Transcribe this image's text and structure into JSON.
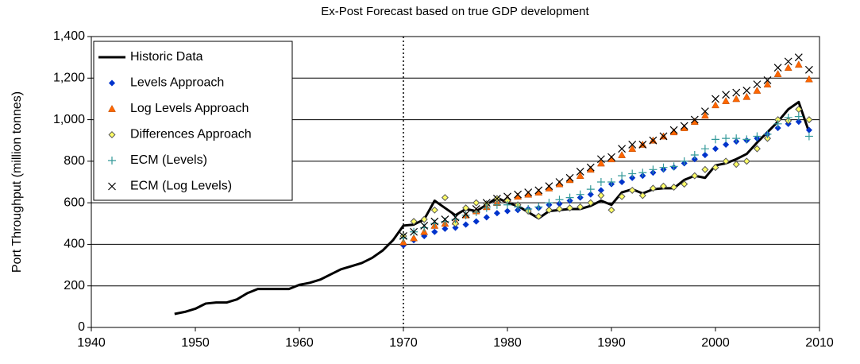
{
  "chart_data": {
    "type": "line",
    "title": "Ex-Post Forecast based on true GDP development",
    "y_label": "Port Throughput (million tonnes)",
    "xlim": [
      1940,
      2010
    ],
    "xticks": [
      1940,
      1950,
      1960,
      1970,
      1980,
      1990,
      2000,
      2010
    ],
    "ylim": [
      0,
      1400
    ],
    "yticks": [
      0,
      200,
      400,
      600,
      800,
      {
        "value": 1000,
        "label": "1,000"
      },
      {
        "value": 1200,
        "label": "1,200"
      },
      {
        "value": 1400,
        "label": "1,400"
      }
    ],
    "grid": true,
    "legend": "upper left",
    "vline": 1970,
    "series": [
      {
        "name": "Historic Data",
        "color": "#000000",
        "marker": "line",
        "x": [
          1948,
          1949,
          1950,
          1951,
          1952,
          1953,
          1954,
          1955,
          1956,
          1957,
          1958,
          1959,
          1960,
          1961,
          1962,
          1963,
          1964,
          1965,
          1966,
          1967,
          1968,
          1969,
          1970,
          1971,
          1972,
          1973,
          1974,
          1975,
          1976,
          1977,
          1978,
          1979,
          1980,
          1981,
          1982,
          1983,
          1984,
          1985,
          1986,
          1987,
          1988,
          1989,
          1990,
          1991,
          1992,
          1993,
          1994,
          1995,
          1996,
          1997,
          1998,
          1999,
          2000,
          2001,
          2002,
          2003,
          2004,
          2005,
          2006,
          2007,
          2008,
          2009
        ],
        "values": [
          65,
          75,
          90,
          115,
          120,
          120,
          135,
          165,
          185,
          185,
          185,
          185,
          205,
          215,
          230,
          255,
          280,
          295,
          310,
          335,
          370,
          420,
          490,
          495,
          520,
          610,
          575,
          540,
          570,
          560,
          590,
          625,
          600,
          585,
          555,
          525,
          560,
          565,
          570,
          570,
          585,
          610,
          590,
          650,
          665,
          645,
          665,
          670,
          670,
          710,
          730,
          720,
          780,
          790,
          810,
          835,
          890,
          940,
          990,
          1050,
          1085,
          940
        ]
      },
      {
        "name": "Levels Approach",
        "color": "#0033cc",
        "marker": "diamond",
        "x": [
          1970,
          1971,
          1972,
          1973,
          1974,
          1975,
          1976,
          1977,
          1978,
          1979,
          1980,
          1981,
          1982,
          1983,
          1984,
          1985,
          1986,
          1987,
          1988,
          1989,
          1990,
          1991,
          1992,
          1993,
          1994,
          1995,
          1996,
          1997,
          1998,
          1999,
          2000,
          2001,
          2002,
          2003,
          2004,
          2005,
          2006,
          2007,
          2008,
          2009
        ],
        "values": [
          395,
          420,
          440,
          460,
          475,
          480,
          495,
          510,
          530,
          550,
          560,
          565,
          570,
          575,
          590,
          595,
          610,
          625,
          640,
          660,
          690,
          700,
          720,
          730,
          745,
          760,
          770,
          790,
          810,
          830,
          860,
          880,
          895,
          900,
          910,
          930,
          960,
          980,
          990,
          950
        ]
      },
      {
        "name": "Log Levels Approach",
        "color": "#ff6600",
        "marker": "triangle",
        "x": [
          1970,
          1971,
          1972,
          1973,
          1974,
          1975,
          1976,
          1977,
          1978,
          1979,
          1980,
          1981,
          1982,
          1983,
          1984,
          1985,
          1986,
          1987,
          1988,
          1989,
          1990,
          1991,
          1992,
          1993,
          1994,
          1995,
          1996,
          1997,
          1998,
          1999,
          2000,
          2001,
          2002,
          2003,
          2004,
          2005,
          2006,
          2007,
          2008,
          2009
        ],
        "values": [
          410,
          430,
          460,
          490,
          500,
          510,
          540,
          560,
          580,
          600,
          620,
          630,
          640,
          650,
          670,
          690,
          710,
          730,
          760,
          790,
          810,
          830,
          860,
          880,
          900,
          920,
          940,
          960,
          990,
          1020,
          1070,
          1090,
          1100,
          1110,
          1140,
          1170,
          1220,
          1250,
          1265,
          1195
        ]
      },
      {
        "name": "Differences Approach",
        "color": "#ffff66",
        "marker": "diamond-outline",
        "x": [
          1970,
          1971,
          1972,
          1973,
          1974,
          1975,
          1976,
          1977,
          1978,
          1979,
          1980,
          1981,
          1982,
          1983,
          1984,
          1985,
          1986,
          1987,
          1988,
          1989,
          1990,
          1991,
          1992,
          1993,
          1994,
          1995,
          1996,
          1997,
          1998,
          1999,
          2000,
          2001,
          2002,
          2003,
          2004,
          2005,
          2006,
          2007,
          2008,
          2009
        ],
        "values": [
          440,
          510,
          520,
          565,
          625,
          500,
          575,
          600,
          595,
          620,
          610,
          590,
          560,
          535,
          565,
          570,
          575,
          580,
          600,
          635,
          565,
          630,
          660,
          635,
          670,
          680,
          675,
          690,
          730,
          760,
          770,
          800,
          785,
          800,
          860,
          910,
          1000,
          995,
          1050,
          1000
        ]
      },
      {
        "name": "ECM (Levels)",
        "color": "#339999",
        "marker": "plus",
        "x": [
          1970,
          1971,
          1972,
          1973,
          1974,
          1975,
          1976,
          1977,
          1978,
          1979,
          1980,
          1981,
          1982,
          1983,
          1984,
          1985,
          1986,
          1987,
          1988,
          1989,
          1990,
          1991,
          1992,
          1993,
          1994,
          1995,
          1996,
          1997,
          1998,
          1999,
          2000,
          2001,
          2002,
          2003,
          2004,
          2005,
          2006,
          2007,
          2008,
          2009
        ],
        "values": [
          430,
          460,
          480,
          500,
          510,
          520,
          540,
          555,
          575,
          590,
          590,
          580,
          570,
          580,
          600,
          615,
          625,
          640,
          665,
          700,
          700,
          730,
          740,
          745,
          760,
          770,
          775,
          800,
          830,
          860,
          905,
          910,
          910,
          905,
          920,
          930,
          980,
          1010,
          1015,
          920
        ]
      },
      {
        "name": "ECM (Log Levels)",
        "color": "#000000",
        "marker": "x",
        "x": [
          1970,
          1971,
          1972,
          1973,
          1974,
          1975,
          1976,
          1977,
          1978,
          1979,
          1980,
          1981,
          1982,
          1983,
          1984,
          1985,
          1986,
          1987,
          1988,
          1989,
          1990,
          1991,
          1992,
          1993,
          1994,
          1995,
          1996,
          1997,
          1998,
          1999,
          2000,
          2001,
          2002,
          2003,
          2004,
          2005,
          2006,
          2007,
          2008,
          2009
        ],
        "values": [
          440,
          460,
          490,
          510,
          520,
          530,
          545,
          570,
          600,
          620,
          630,
          640,
          650,
          660,
          680,
          700,
          720,
          750,
          770,
          810,
          820,
          860,
          880,
          880,
          900,
          920,
          950,
          970,
          1000,
          1040,
          1100,
          1120,
          1130,
          1140,
          1170,
          1190,
          1250,
          1280,
          1300,
          1240
        ]
      }
    ]
  }
}
